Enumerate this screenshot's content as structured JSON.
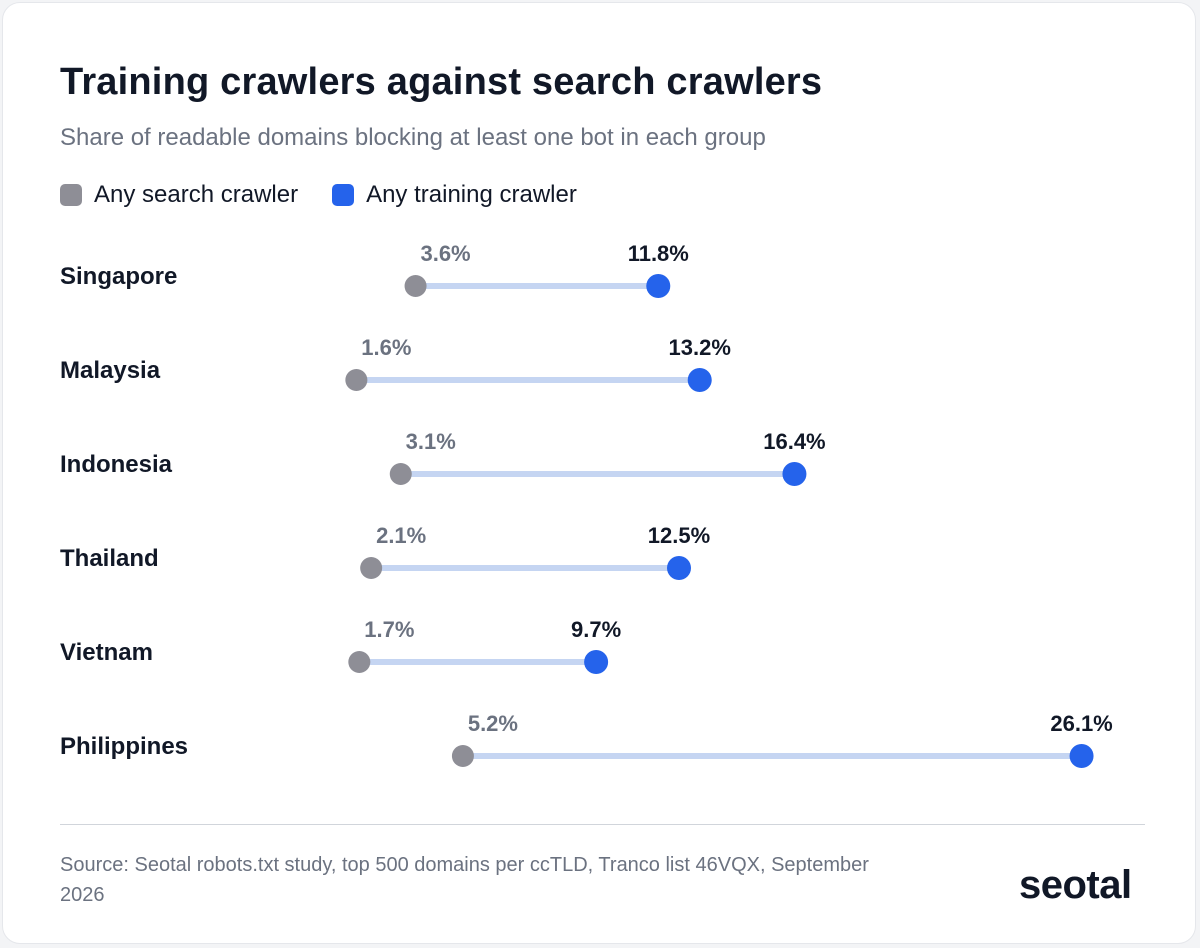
{
  "title": "Training crawlers against search crawlers",
  "subtitle": "Share of readable domains blocking at least one bot in each group",
  "legend": {
    "search": "Any search crawler",
    "training": "Any training crawler"
  },
  "colors": {
    "search": "#8e8e96",
    "training": "#2563eb",
    "connector": "#c5d5f2",
    "label_search": "#6b7280",
    "label_training": "#111827"
  },
  "chart_data": {
    "type": "dumbbell",
    "title": "Training crawlers against search crawlers",
    "subtitle": "Share of readable domains blocking at least one bot in each group",
    "categories": [
      "Singapore",
      "Malaysia",
      "Indonesia",
      "Thailand",
      "Vietnam",
      "Philippines"
    ],
    "series": [
      {
        "name": "Any search crawler",
        "values": [
          3.6,
          1.6,
          3.1,
          2.1,
          1.7,
          5.2
        ],
        "labels": [
          "3.6%",
          "1.6%",
          "3.1%",
          "2.1%",
          "1.7%",
          "5.2%"
        ]
      },
      {
        "name": "Any training crawler",
        "values": [
          11.8,
          13.2,
          16.4,
          12.5,
          9.7,
          26.1
        ],
        "labels": [
          "11.8%",
          "13.2%",
          "16.4%",
          "12.5%",
          "9.7%",
          "26.1%"
        ]
      }
    ],
    "unit": "%",
    "grid": false,
    "legend_position": "top-left"
  },
  "source": "Source: Seotal robots.txt study, top 500 domains per ccTLD, Tranco list 46VQX, September 2026",
  "logo": "seotal"
}
